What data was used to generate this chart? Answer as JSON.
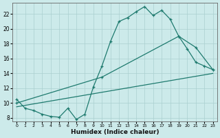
{
  "xlabel": "Humidex (Indice chaleur)",
  "bg_color": "#cceaea",
  "grid_color": "#b8d8d8",
  "line_color": "#1e7a6e",
  "xlim": [
    -0.5,
    23.5
  ],
  "ylim": [
    7.5,
    23.5
  ],
  "yticks": [
    8,
    10,
    12,
    14,
    16,
    18,
    20,
    22
  ],
  "xticks": [
    0,
    1,
    2,
    3,
    4,
    5,
    6,
    7,
    8,
    9,
    10,
    11,
    12,
    13,
    14,
    15,
    16,
    17,
    18,
    19,
    20,
    21,
    22,
    23
  ],
  "line1_x": [
    0,
    1,
    2,
    3,
    4,
    5,
    6,
    7,
    8,
    9,
    10,
    11,
    12,
    13,
    14,
    15,
    16,
    17,
    18,
    19,
    20,
    21,
    22,
    23
  ],
  "line1_y": [
    10.5,
    9.3,
    9.0,
    8.5,
    8.2,
    8.1,
    9.3,
    7.8,
    8.5,
    12.2,
    15.0,
    18.3,
    21.0,
    21.5,
    22.3,
    23.0,
    21.8,
    22.5,
    21.3,
    19.0,
    17.3,
    15.5,
    15.0,
    14.5
  ],
  "line2_x": [
    0,
    10,
    19,
    21,
    23
  ],
  "line2_y": [
    10.0,
    13.5,
    19.0,
    17.5,
    14.5
  ],
  "line3_x": [
    0,
    23
  ],
  "line3_y": [
    9.5,
    14.0
  ]
}
